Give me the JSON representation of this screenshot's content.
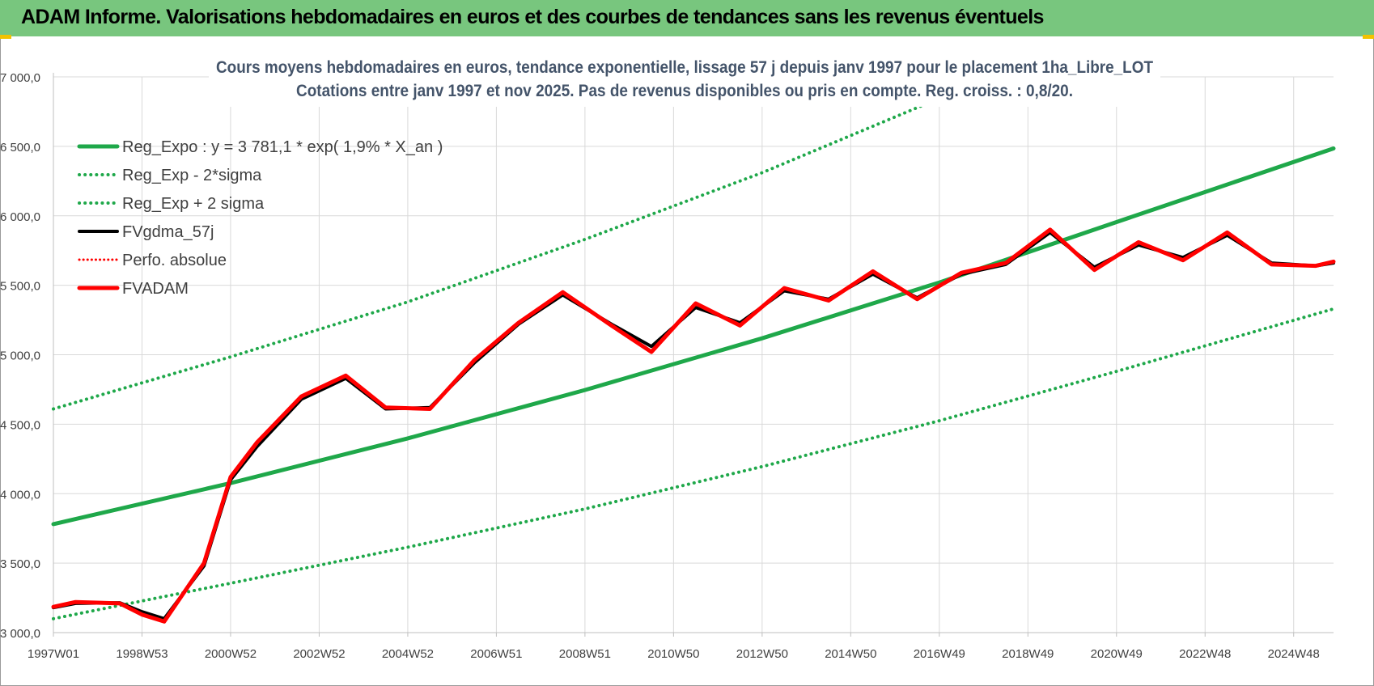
{
  "header": {
    "title": "ADAM Informe. Valorisations hebdomadaires en euros et des courbes de tendances sans les revenus éventuels"
  },
  "colors": {
    "header_bg": "#78c67e",
    "green": "#1fa84a",
    "dotted_green": "#1fa84a",
    "black": "#000000",
    "red": "#ff0000",
    "grid": "#d9d9d9"
  },
  "chart_data": {
    "type": "line",
    "title_lines": [
      "Cours moyens hebdomadaires en euros, tendance exponentielle, lissage 57 j depuis janv 1997  pour le placement 1ha_Libre_LOT",
      "Cotations entre janv 1997 et nov 2025. Pas de revenus disponibles ou pris en compte. Reg. croiss. : 0,8/20."
    ],
    "ylim": [
      3000,
      7000
    ],
    "y_ticks": [
      "3 000,0",
      "3 500,0",
      "4 000,0",
      "4 500,0",
      "5 000,0",
      "5 500,0",
      "6 000,0",
      "6 500,0",
      "7 000,0"
    ],
    "y_tick_values": [
      3000,
      3500,
      4000,
      4500,
      5000,
      5500,
      6000,
      6500,
      7000
    ],
    "xlim": [
      1997.0,
      2025.9
    ],
    "x_ticks": [
      "1997W01",
      "1998W53",
      "2000W52",
      "2002W52",
      "2004W52",
      "2006W51",
      "2008W51",
      "2010W50",
      "2012W50",
      "2014W50",
      "2016W49",
      "2018W49",
      "2020W49",
      "2022W48",
      "2024W48"
    ],
    "x_tick_values": [
      1997.0,
      1999.0,
      2001.0,
      2003.0,
      2005.0,
      2007.0,
      2009.0,
      2011.0,
      2013.0,
      2015.0,
      2017.0,
      2019.0,
      2021.0,
      2023.0,
      2025.0
    ],
    "legend_position": "top-left",
    "series": [
      {
        "name": "Reg_Expo : y = 3 781,1 * exp( 1,9% *  X_an )",
        "style": "solid",
        "color": "#1fa84a",
        "x": [
          1997.0,
          2001.0,
          2005.0,
          2009.0,
          2013.0,
          2017.0,
          2021.0,
          2025.9
        ],
        "values": [
          3781,
          4076,
          4398,
          4746,
          5118,
          5520,
          5955,
          6485
        ]
      },
      {
        "name": "Reg_Exp - 2*sigma",
        "style": "dotted",
        "color": "#1fa84a",
        "x": [
          1997.0,
          2001.0,
          2005.0,
          2009.0,
          2013.0,
          2017.0,
          2021.0,
          2025.9
        ],
        "values": [
          3100,
          3355,
          3615,
          3890,
          4195,
          4525,
          4880,
          5330
        ]
      },
      {
        "name": "Reg_Exp + 2 sigma",
        "style": "dotted",
        "color": "#1fa84a",
        "x": [
          1997.0,
          2001.0,
          2005.0,
          2009.0,
          2013.0,
          2017.0,
          2018.2
        ],
        "values": [
          4610,
          4985,
          5380,
          5830,
          6310,
          6845,
          7000
        ]
      },
      {
        "name": "FVgdma_57j",
        "style": "solid",
        "color": "#000000",
        "x": [
          1997.0,
          1997.5,
          1998.5,
          1999.0,
          1999.5,
          2000.4,
          2001.0,
          2001.6,
          2002.6,
          2003.6,
          2004.5,
          2005.5,
          2006.5,
          2007.5,
          2008.5,
          2009.6,
          2010.5,
          2011.5,
          2012.5,
          2013.5,
          2014.5,
          2015.5,
          2016.5,
          2017.5,
          2018.5,
          2019.5,
          2020.5,
          2021.5,
          2022.5,
          2023.5,
          2024.5,
          2025.5,
          2025.9
        ],
        "values": [
          3180,
          3210,
          3215,
          3150,
          3100,
          3480,
          4100,
          4340,
          4680,
          4830,
          4610,
          4620,
          4940,
          5220,
          5430,
          5220,
          5060,
          5340,
          5230,
          5460,
          5400,
          5580,
          5410,
          5580,
          5650,
          5880,
          5630,
          5790,
          5700,
          5860,
          5660,
          5640,
          5660
        ]
      },
      {
        "name": "Perfo. absolue",
        "style": "dotted",
        "color": "#ff0000",
        "x": [
          1997.0,
          1997.5,
          1998.5,
          1999.0,
          1999.5,
          2000.4,
          2001.0,
          2001.6,
          2002.6,
          2003.6,
          2004.5,
          2005.5,
          2006.5,
          2007.5,
          2008.5,
          2009.6,
          2010.5,
          2011.5,
          2012.5,
          2013.5,
          2014.5,
          2015.5,
          2016.5,
          2017.5,
          2018.5,
          2019.5,
          2020.5,
          2021.5,
          2022.5,
          2023.5,
          2024.5,
          2025.5,
          2025.9
        ],
        "values": [
          3185,
          3220,
          3210,
          3130,
          3080,
          3500,
          4120,
          4370,
          4700,
          4850,
          4620,
          4610,
          4960,
          5230,
          5450,
          5210,
          5020,
          5370,
          5210,
          5480,
          5390,
          5600,
          5400,
          5590,
          5660,
          5900,
          5610,
          5810,
          5680,
          5880,
          5650,
          5640,
          5670
        ]
      },
      {
        "name": "FVADAM",
        "style": "solid",
        "color": "#ff0000",
        "x": [
          1997.0,
          1997.5,
          1998.5,
          1999.0,
          1999.5,
          2000.4,
          2001.0,
          2001.6,
          2002.6,
          2003.6,
          2004.5,
          2005.5,
          2006.5,
          2007.5,
          2008.5,
          2009.6,
          2010.5,
          2011.5,
          2012.5,
          2013.5,
          2014.5,
          2015.5,
          2016.5,
          2017.5,
          2018.5,
          2019.5,
          2020.5,
          2021.5,
          2022.5,
          2023.5,
          2024.5,
          2025.5,
          2025.9
        ],
        "values": [
          3185,
          3220,
          3210,
          3130,
          3080,
          3500,
          4120,
          4370,
          4700,
          4850,
          4620,
          4610,
          4960,
          5230,
          5450,
          5210,
          5020,
          5370,
          5210,
          5480,
          5390,
          5600,
          5400,
          5590,
          5660,
          5900,
          5610,
          5810,
          5680,
          5880,
          5650,
          5640,
          5670
        ]
      }
    ]
  }
}
